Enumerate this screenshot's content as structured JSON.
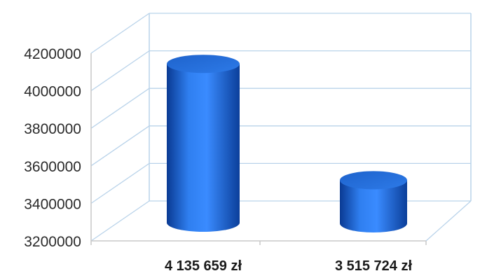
{
  "chart_data": {
    "type": "bar",
    "style": "3d-cylinder",
    "categories": [
      "4 135 659 zł",
      "3 515 724 zł"
    ],
    "values": [
      4135659,
      3515724
    ],
    "ylim": [
      3200000,
      4200000
    ],
    "yticks": [
      "3200000",
      "3400000",
      "3600000",
      "3800000",
      "4000000",
      "4200000"
    ],
    "grid": true,
    "colors": {
      "bar": "#1f6fd6",
      "bar_dark": "#0b3f9a",
      "bar_light": "#5aa0ff",
      "grid": "#b9d3ea"
    }
  }
}
